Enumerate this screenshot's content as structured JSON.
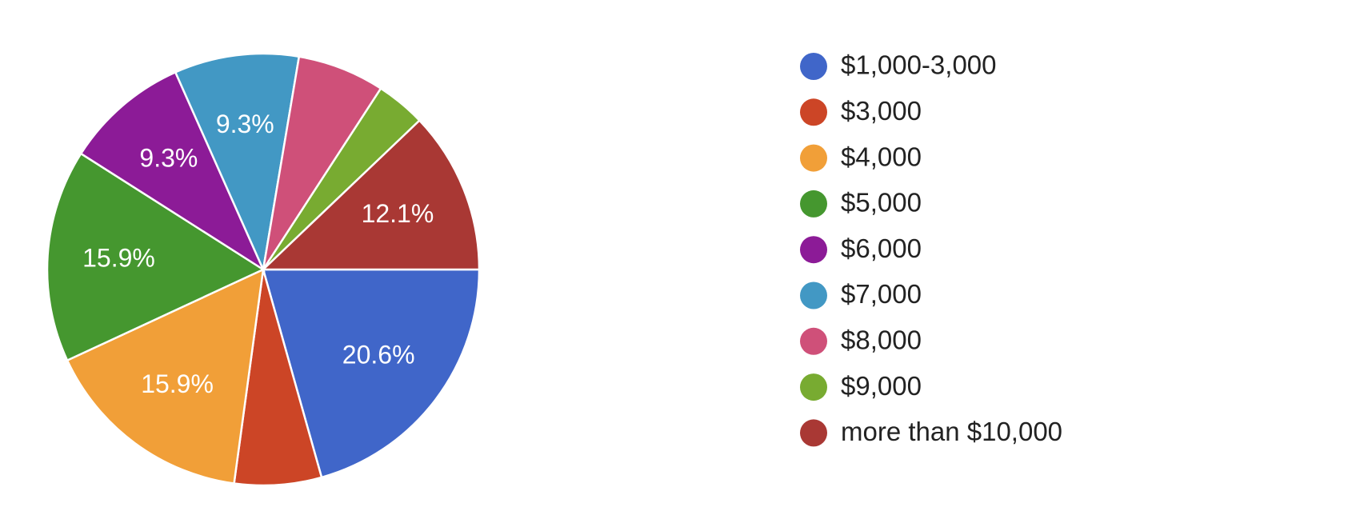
{
  "chart_data": {
    "type": "pie",
    "categories": [
      "$1,000-3,000",
      "$3,000",
      "$4,000",
      "$5,000",
      "$6,000",
      "$7,000",
      "$8,000",
      "$9,000",
      "more than $10,000"
    ],
    "values": [
      20.6,
      6.5,
      15.9,
      15.9,
      9.3,
      9.3,
      6.5,
      3.7,
      12.1
    ],
    "value_labels": [
      "20.6%",
      null,
      "15.9%",
      "15.9%",
      "9.3%",
      "9.3%",
      null,
      null,
      "12.1%"
    ],
    "colors": [
      "#4066c9",
      "#cc4526",
      "#f19f38",
      "#45972f",
      "#8c1b97",
      "#4298c4",
      "#cf5079",
      "#78ab31",
      "#a93834"
    ]
  }
}
